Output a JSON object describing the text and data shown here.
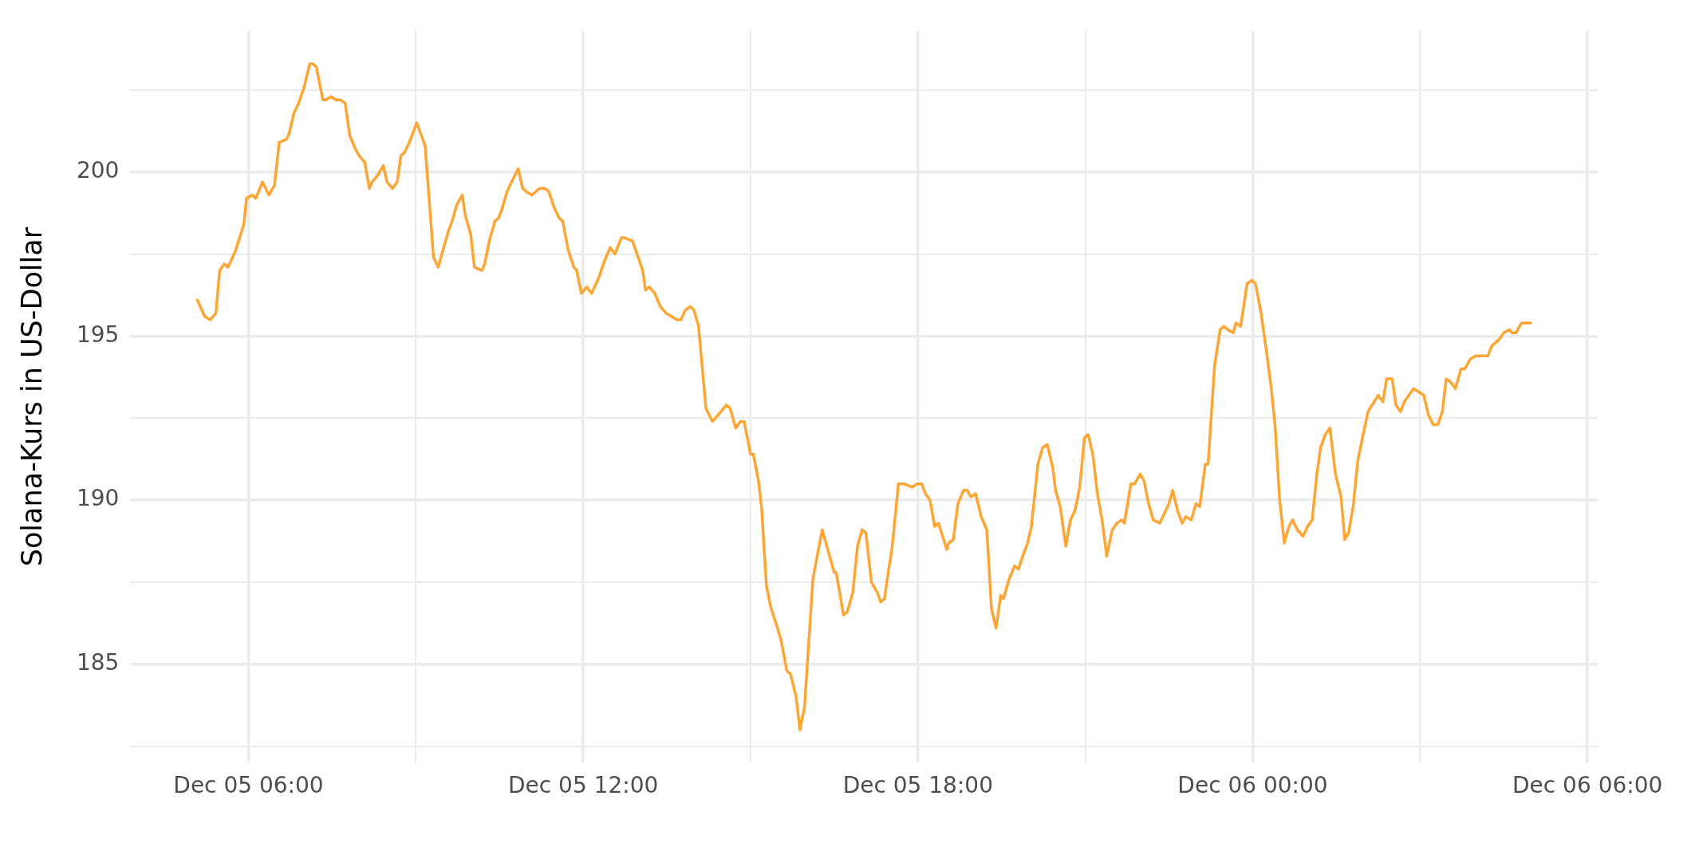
{
  "chart_data": {
    "type": "line",
    "ylabel": "Solana-Kurs in US-Dollar",
    "xlim": [
      "--12-05T03:53",
      "--12-06T06:11"
    ],
    "xticks": [
      {
        "value": "--12-05T06:00",
        "label": "Dec 05 06:00"
      },
      {
        "value": "--12-05T09:00",
        "label": null
      },
      {
        "value": "--12-05T12:00",
        "label": "Dec 05 12:00"
      },
      {
        "value": "--12-05T15:00",
        "label": null
      },
      {
        "value": "--12-05T18:00",
        "label": "Dec 05 18:00"
      },
      {
        "value": "--12-05T21:00",
        "label": null
      },
      {
        "value": "--12-06T00:00",
        "label": "Dec 06 00:00"
      },
      {
        "value": "--12-06T03:00",
        "label": null
      },
      {
        "value": "--12-06T06:00",
        "label": "Dec 06 06:00"
      }
    ],
    "ylim": [
      182,
      204.3
    ],
    "yticks": [
      {
        "value": 182.5,
        "label": null
      },
      185,
      {
        "value": 187.5,
        "label": null
      },
      190,
      {
        "value": 192.5,
        "label": null
      },
      195,
      {
        "value": 197.5,
        "label": null
      },
      200,
      {
        "value": 202.5,
        "label": null
      }
    ],
    "grid": true,
    "legend": false,
    "marker": "none",
    "line_style": "solid",
    "x": [
      "--12-05T05:05",
      "--12-05T05:13",
      "--12-05T05:19",
      "--12-05T05:25",
      "--12-05T05:29",
      "--12-05T05:34",
      "--12-05T05:38",
      "--12-05T05:46",
      "--12-05T05:55",
      "--12-05T05:58",
      "--12-05T06:04",
      "--12-05T06:08",
      "--12-05T06:15",
      "--12-05T06:22",
      "--12-05T06:28",
      "--12-05T06:33",
      "--12-05T06:41",
      "--12-05T06:44",
      "--12-05T06:49",
      "--12-05T06:54",
      "--12-05T07:00",
      "--12-05T07:06",
      "--12-05T07:09",
      "--12-05T07:13",
      "--12-05T07:20",
      "--12-05T07:23",
      "--12-05T07:29",
      "--12-05T07:34",
      "--12-05T07:39",
      "--12-05T07:44",
      "--12-05T07:49",
      "--12-05T07:55",
      "--12-05T07:59",
      "--12-05T08:05",
      "--12-05T08:10",
      "--12-05T08:13",
      "--12-05T08:19",
      "--12-05T08:25",
      "--12-05T08:29",
      "--12-05T08:35",
      "--12-05T08:40",
      "--12-05T08:44",
      "--12-05T08:48",
      "--12-05T08:53",
      "--12-05T09:01",
      "--12-05T09:10",
      "--12-05T09:19",
      "--12-05T09:24",
      "--12-05T09:29",
      "--12-05T09:35",
      "--12-05T09:39",
      "--12-05T09:44",
      "--12-05T09:50",
      "--12-05T09:53",
      "--12-05T09:59",
      "--12-05T10:03",
      "--12-05T10:11",
      "--12-05T10:14",
      "--12-05T10:19",
      "--12-05T10:25",
      "--12-05T10:29",
      "--12-05T10:33",
      "--12-05T10:38",
      "--12-05T10:43",
      "--12-05T10:50",
      "--12-05T10:55",
      "--12-05T10:59",
      "--12-05T11:05",
      "--12-05T11:13",
      "--12-05T11:19",
      "--12-05T11:23",
      "--12-05T11:29",
      "--12-05T11:34",
      "--12-05T11:38",
      "--12-05T11:44",
      "--12-05T11:50",
      "--12-05T11:53",
      "--12-05T11:58",
      "--12-05T12:04",
      "--12-05T12:09",
      "--12-05T12:17",
      "--12-05T12:23",
      "--12-05T12:29",
      "--12-05T12:34",
      "--12-05T12:41",
      "--12-05T12:44",
      "--12-05T12:53",
      "--12-05T13:04",
      "--12-05T13:07",
      "--12-05T13:11",
      "--12-05T13:17",
      "--12-05T13:23",
      "--12-05T13:29",
      "--12-05T13:35",
      "--12-05T13:41",
      "--12-05T13:45",
      "--12-05T13:50",
      "--12-05T13:55",
      "--12-05T13:59",
      "--12-05T14:04",
      "--12-05T14:12",
      "--12-05T14:19",
      "--12-05T14:28",
      "--12-05T14:34",
      "--12-05T14:38",
      "--12-05T14:44",
      "--12-05T14:49",
      "--12-05T14:53",
      "--12-05T15:00",
      "--12-05T15:03",
      "--12-05T15:09",
      "--12-05T15:12",
      "--12-05T15:17",
      "--12-05T15:22",
      "--12-05T15:28",
      "--12-05T15:33",
      "--12-05T15:39",
      "--12-05T15:43",
      "--12-05T15:49",
      "--12-05T15:53",
      "--12-05T15:58",
      "--12-05T16:07",
      "--12-05T16:13",
      "--12-05T16:17",
      "--12-05T16:30",
      "--12-05T16:32",
      "--12-05T16:40",
      "--12-05T16:44",
      "--12-05T16:50",
      "--12-05T16:55",
      "--12-05T17:00",
      "--12-05T17:04",
      "--12-05T17:10",
      "--12-05T17:16",
      "--12-05T17:20",
      "--12-05T17:24",
      "--12-05T17:28",
      "--12-05T17:32",
      "--12-05T17:39",
      "--12-05T17:45",
      "--12-05T17:54",
      "--12-05T17:59",
      "--12-05T18:04",
      "--12-05T18:08",
      "--12-05T18:13",
      "--12-05T18:18",
      "--12-05T18:22",
      "--12-05T18:31",
      "--12-05T18:33",
      "--12-05T18:38",
      "--12-05T18:43",
      "--12-05T18:49",
      "--12-05T18:53",
      "--12-05T18:57",
      "--12-05T19:02",
      "--12-05T19:08",
      "--12-05T19:14",
      "--12-05T19:19",
      "--12-05T19:24",
      "--12-05T19:29",
      "--12-05T19:32",
      "--12-05T19:38",
      "--12-05T19:44",
      "--12-05T19:48",
      "--12-05T19:54",
      "--12-05T19:58",
      "--12-05T20:02",
      "--12-05T20:09",
      "--12-05T20:14",
      "--12-05T20:19",
      "--12-05T20:25",
      "--12-05T20:28",
      "--12-05T20:33",
      "--12-05T20:39",
      "--12-05T20:44",
      "--12-05T20:49",
      "--12-05T20:54",
      "--12-05T20:59",
      "--12-05T21:03",
      "--12-05T21:08",
      "--12-05T21:13",
      "--12-05T21:18",
      "--12-05T21:23",
      "--12-05T21:29",
      "--12-05T21:34",
      "--12-05T21:39",
      "--12-05T21:42",
      "--12-05T21:49",
      "--12-05T21:53",
      "--12-05T21:59",
      "--12-05T22:03",
      "--12-05T22:08",
      "--12-05T22:13",
      "--12-05T22:20",
      "--12-05T22:25",
      "--12-05T22:30",
      "--12-05T22:34",
      "--12-05T22:39",
      "--12-05T22:44",
      "--12-05T22:48",
      "--12-05T22:54",
      "--12-05T22:59",
      "--12-05T23:03",
      "--12-05T23:09",
      "--12-05T23:12",
      "--12-05T23:19",
      "--12-05T23:25",
      "--12-05T23:29",
      "--12-05T23:33",
      "--12-05T23:39",
      "--12-05T23:42",
      "--12-05T23:47",
      "--12-05T23:54",
      "--12-05T23:59",
      "--12-06T00:03",
      "--12-06T00:09",
      "--12-06T00:15",
      "--12-06T00:20",
      "--12-06T00:24",
      "--12-06T00:29",
      "--12-06T00:34",
      "--12-06T00:39",
      "--12-06T00:43",
      "--12-06T00:48",
      "--12-06T00:54",
      "--12-06T00:59",
      "--12-06T01:04",
      "--12-06T01:09",
      "--12-06T01:13",
      "--12-06T01:18",
      "--12-06T01:23",
      "--12-06T01:29",
      "--12-06T01:35",
      "--12-06T01:39",
      "--12-06T01:43",
      "--12-06T01:48",
      "--12-06T01:53",
      "--12-06T01:58",
      "--12-06T02:04",
      "--12-06T02:15",
      "--12-06T02:20",
      "--12-06T02:24",
      "--12-06T02:30",
      "--12-06T02:34",
      "--12-06T02:39",
      "--12-06T02:43",
      "--12-06T02:48",
      "--12-06T02:53",
      "--12-06T03:04",
      "--12-06T03:09",
      "--12-06T03:14",
      "--12-06T03:19",
      "--12-06T03:24",
      "--12-06T03:28",
      "--12-06T03:33",
      "--12-06T03:38",
      "--12-06T03:44",
      "--12-06T03:48",
      "--12-06T03:54",
      "--12-06T04:00",
      "--12-06T04:04",
      "--12-06T04:09",
      "--12-06T04:13",
      "--12-06T04:17",
      "--12-06T04:25",
      "--12-06T04:30",
      "--12-06T04:36",
      "--12-06T04:39",
      "--12-06T04:43",
      "--12-06T04:49",
      "--12-06T04:53",
      "--12-06T04:59"
    ],
    "series": [
      {
        "color": "#ffa533",
        "values": [
          196.1,
          195.6,
          195.5,
          195.7,
          197.0,
          197.2,
          197.1,
          197.6,
          198.4,
          199.2,
          199.3,
          199.2,
          199.7,
          199.3,
          199.6,
          200.9,
          201.0,
          201.2,
          201.8,
          202.1,
          202.6,
          203.3,
          203.3,
          203.2,
          202.2,
          202.2,
          202.3,
          202.2,
          202.2,
          202.1,
          201.1,
          200.7,
          200.5,
          200.3,
          199.5,
          199.7,
          199.9,
          200.2,
          199.7,
          199.5,
          199.7,
          200.5,
          200.6,
          200.9,
          201.5,
          200.8,
          197.4,
          197.1,
          197.6,
          198.2,
          198.5,
          199.0,
          199.3,
          198.7,
          198.1,
          197.1,
          197.0,
          197.2,
          197.9,
          198.5,
          198.6,
          198.9,
          199.4,
          199.7,
          200.1,
          199.5,
          199.4,
          199.3,
          199.5,
          199.5,
          199.4,
          198.9,
          198.6,
          198.5,
          197.6,
          197.1,
          197.0,
          196.3,
          196.5,
          196.3,
          196.8,
          197.3,
          197.7,
          197.5,
          198.0,
          198.0,
          197.9,
          197.0,
          196.4,
          196.5,
          196.3,
          195.9,
          195.7,
          195.6,
          195.5,
          195.5,
          195.8,
          195.9,
          195.8,
          195.3,
          192.8,
          192.4,
          192.7,
          192.9,
          192.8,
          192.2,
          192.4,
          192.4,
          191.4,
          191.4,
          190.5,
          189.7,
          187.4,
          186.7,
          186.2,
          185.7,
          184.8,
          184.7,
          184.0,
          183.0,
          183.7,
          187.6,
          188.5,
          189.1,
          187.8,
          187.8,
          186.5,
          186.6,
          187.2,
          188.6,
          189.1,
          189.0,
          187.5,
          187.2,
          186.9,
          187.0,
          187.8,
          188.5,
          190.5,
          190.5,
          190.4,
          190.5,
          190.5,
          190.2,
          190.0,
          189.2,
          189.3,
          188.5,
          188.7,
          188.8,
          189.9,
          190.3,
          190.3,
          190.1,
          190.2,
          189.5,
          189.1,
          186.7,
          186.1,
          187.1,
          187.0,
          187.6,
          188.0,
          187.9,
          188.4,
          188.7,
          189.2,
          191.1,
          191.6,
          191.7,
          191.0,
          190.3,
          189.8,
          188.6,
          189.4,
          189.7,
          190.4,
          191.9,
          192.0,
          191.4,
          190.2,
          189.4,
          188.3,
          189.1,
          189.3,
          189.4,
          189.3,
          190.5,
          190.5,
          190.8,
          190.6,
          189.9,
          189.4,
          189.3,
          189.6,
          189.9,
          190.3,
          189.7,
          189.3,
          189.5,
          189.4,
          189.9,
          189.8,
          191.1,
          191.1,
          194.1,
          195.2,
          195.3,
          195.2,
          195.1,
          195.4,
          195.3,
          196.6,
          196.7,
          196.6,
          195.7,
          194.5,
          193.4,
          192.3,
          190.0,
          188.7,
          189.2,
          189.4,
          189.1,
          188.9,
          189.2,
          189.4,
          190.8,
          191.6,
          192.0,
          192.2,
          190.8,
          190.1,
          188.8,
          189.0,
          189.8,
          191.2,
          191.9,
          192.7,
          193.2,
          193.0,
          193.7,
          193.7,
          192.9,
          192.7,
          193.0,
          193.2,
          193.4,
          193.2,
          192.6,
          192.3,
          192.3,
          192.7,
          193.7,
          193.6,
          193.4,
          194.0,
          194.0,
          194.3,
          194.4,
          194.4,
          194.4,
          194.4,
          194.7,
          194.9,
          195.1,
          195.2,
          195.1,
          195.1,
          195.4,
          195.4,
          195.4
        ]
      }
    ]
  }
}
